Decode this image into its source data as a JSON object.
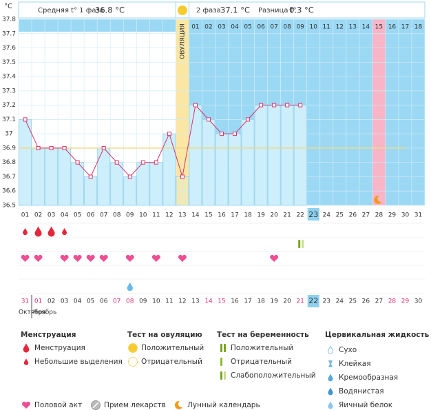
{
  "chart_data": {
    "type": "line",
    "y_label": "°C",
    "summary": {
      "phase1_label": "Средняя t° 1 фаза",
      "phase1_value": "36.8 °C",
      "phase2_label": "2 фаза",
      "phase2_value": "37.1 °C",
      "diff_label": "Разница t°",
      "diff_value": "0.3 °C"
    },
    "categories": [
      "01",
      "02",
      "03",
      "04",
      "05",
      "06",
      "07",
      "08",
      "09",
      "10",
      "11",
      "12",
      "13",
      "14",
      "15",
      "16",
      "17",
      "18",
      "19",
      "20",
      "21",
      "22",
      "23",
      "24",
      "25",
      "26",
      "27",
      "28",
      "29",
      "30",
      "31"
    ],
    "series": [
      {
        "color": "#d9316b",
        "values": [
          37.1,
          36.9,
          36.9,
          36.9,
          36.8,
          36.7,
          36.9,
          36.8,
          36.7,
          36.8,
          36.8,
          37.0,
          36.7,
          37.2,
          37.1,
          37.0,
          37.0,
          37.1,
          37.2,
          37.2,
          37.2,
          37.2,
          null,
          null,
          null,
          null,
          null,
          null,
          null,
          null,
          null
        ]
      }
    ],
    "coverline": 36.9,
    "ylim": [
      36.5,
      37.8
    ],
    "yticks": [
      36.5,
      36.6,
      36.7,
      36.8,
      36.9,
      37,
      37.1,
      37.2,
      37.3,
      37.4,
      37.5,
      37.6,
      37.7,
      37.8
    ],
    "grid": true,
    "ovulation_day": 13,
    "ovulation_label": "ОВУЛЯЦИЯ",
    "phase2_days": [
      "01",
      "02",
      "03",
      "04",
      "05",
      "06",
      "07",
      "08",
      "09",
      "10",
      "11",
      "12",
      "13",
      "14",
      "15",
      "16",
      "17",
      "18"
    ],
    "moon_day": 28,
    "current_day": 23,
    "menstruation": [
      {
        "day": 1,
        "size": "small"
      },
      {
        "day": 2,
        "size": "large"
      },
      {
        "day": 3,
        "size": "large"
      },
      {
        "day": 4,
        "size": "small"
      }
    ],
    "pregnancy_test": [
      {
        "day": 22,
        "result": "weak"
      }
    ],
    "intercourse": [
      1,
      2,
      4,
      5,
      6,
      7,
      9,
      11,
      13,
      20
    ],
    "cervical": [
      {
        "day": 9,
        "kind": "egg-white"
      }
    ],
    "dates": [
      "31",
      "01",
      "02",
      "03",
      "04",
      "05",
      "06",
      "07",
      "08",
      "09",
      "10",
      "11",
      "12",
      "13",
      "14",
      "15",
      "16",
      "17",
      "18",
      "19",
      "20",
      "21",
      "22",
      "23",
      "24",
      "25",
      "26",
      "27",
      "28",
      "29",
      "30"
    ],
    "red_dates": [
      0,
      1,
      7,
      8,
      14,
      15,
      21,
      28,
      29
    ],
    "today_date": 22,
    "months": [
      "Октябрь",
      "Ноябрь"
    ]
  },
  "legend": {
    "groups": [
      {
        "title": "Менструация",
        "items": [
          "Менструация",
          "Небольшие выделения"
        ]
      },
      {
        "title": "Тест на овуляцию",
        "items": [
          "Положительный",
          "Отрицательный"
        ]
      },
      {
        "title": "Тест на беременность",
        "items": [
          "Положительный",
          "Отрицательный",
          "Слабоположительный"
        ]
      },
      {
        "title": "Цервикальная жидкость",
        "items": [
          "Сухо",
          "Клейкая",
          "Кремообразная",
          "Водянистая",
          "Яичный белок"
        ]
      }
    ],
    "extra": [
      "Половой акт",
      "Прием лекарств",
      "Лунный календарь"
    ]
  }
}
